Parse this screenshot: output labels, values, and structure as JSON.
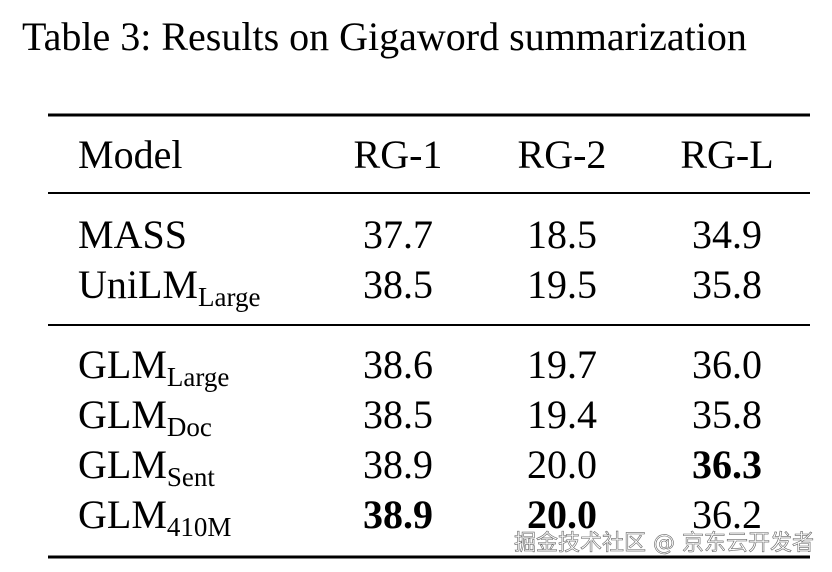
{
  "caption": "Table 3: Results on Gigaword summarization",
  "table": {
    "header": [
      "Model",
      "RG-1",
      "RG-2",
      "RG-L"
    ],
    "groups": [
      [
        {
          "model": "MASS",
          "cells": [
            "37.7",
            "18.5",
            "34.9"
          ],
          "bold": []
        },
        {
          "model": "UniLM",
          "sub": "Large",
          "cells": [
            "38.5",
            "19.5",
            "35.8"
          ],
          "bold": []
        }
      ],
      [
        {
          "model": "GLM",
          "sub": "Large",
          "cells": [
            "38.6",
            "19.7",
            "36.0"
          ],
          "bold": []
        },
        {
          "model": "GLM",
          "sub": "Doc",
          "cells": [
            "38.5",
            "19.4",
            "35.8"
          ],
          "bold": []
        },
        {
          "model": "GLM",
          "sub": "Sent",
          "cells": [
            "38.9",
            "20.0",
            "36.3"
          ],
          "bold": [
            2
          ]
        },
        {
          "model": "GLM",
          "sub": "410M",
          "cells": [
            "38.9",
            "20.0",
            "36.2"
          ],
          "bold": [
            0,
            1
          ]
        }
      ]
    ]
  },
  "watermark": "掘金技术社区 @ 京东云开发者"
}
